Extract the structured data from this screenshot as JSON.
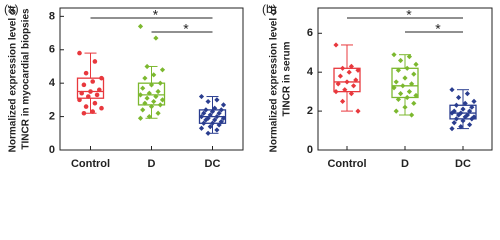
{
  "chart_data": [
    {
      "type": "box",
      "panel_label": "(a)",
      "ylabel": [
        "Normalized expression level of",
        "TINCR in myocardial biopsies"
      ],
      "categories": [
        "Control",
        "D",
        "DC"
      ],
      "ylim": [
        0,
        8.5
      ],
      "yticks": [
        0,
        2,
        4,
        6,
        8
      ],
      "significance": [
        "*",
        "*"
      ],
      "boxes": [
        {
          "color": "#e8383d",
          "marker": "circle",
          "whisker_low": 2.2,
          "q1": 3.1,
          "median": 3.5,
          "q3": 4.3,
          "whisker_high": 5.8,
          "points": [
            5.8,
            5.3,
            4.6,
            4.3,
            4.1,
            3.9,
            3.6,
            3.5,
            3.4,
            3.3,
            3.2,
            3.0,
            2.8,
            2.6,
            2.5,
            2.3,
            2.2
          ]
        },
        {
          "color": "#7cb82f",
          "marker": "diamond",
          "whisker_low": 1.9,
          "q1": 2.7,
          "median": 3.3,
          "q3": 4.0,
          "whisker_high": 5.0,
          "points": [
            7.4,
            6.7,
            5.0,
            4.8,
            4.5,
            4.3,
            4.0,
            3.9,
            3.7,
            3.5,
            3.4,
            3.3,
            3.2,
            3.1,
            3.0,
            2.9,
            2.8,
            2.7,
            2.6,
            2.4,
            2.2,
            2.0,
            1.9
          ]
        },
        {
          "color": "#2a3d8f",
          "marker": "diamond",
          "whisker_low": 1.0,
          "q1": 1.6,
          "median": 2.0,
          "q3": 2.4,
          "whisker_high": 3.2,
          "points": [
            3.2,
            3.0,
            2.9,
            2.7,
            2.5,
            2.4,
            2.4,
            2.3,
            2.2,
            2.2,
            2.1,
            2.0,
            2.0,
            1.9,
            1.9,
            1.8,
            1.8,
            1.7,
            1.6,
            1.6,
            1.5,
            1.4,
            1.3,
            1.2,
            1.0
          ]
        }
      ]
    },
    {
      "type": "box",
      "panel_label": "(b)",
      "ylabel": [
        "Normalized expression level of",
        "TINCR in serum"
      ],
      "categories": [
        "Control",
        "D",
        "DC"
      ],
      "ylim": [
        0,
        7.3
      ],
      "yticks": [
        0,
        2,
        4,
        6
      ],
      "significance": [
        "*",
        "*"
      ],
      "boxes": [
        {
          "color": "#e8383d",
          "marker": "diamond",
          "whisker_low": 2.0,
          "q1": 3.0,
          "median": 3.5,
          "q3": 4.2,
          "whisker_high": 5.4,
          "points": [
            5.4,
            4.3,
            4.2,
            4.1,
            4.0,
            3.8,
            3.6,
            3.5,
            3.4,
            3.3,
            3.1,
            3.0,
            2.9,
            2.5,
            2.0
          ]
        },
        {
          "color": "#7cb82f",
          "marker": "diamond",
          "whisker_low": 1.8,
          "q1": 2.7,
          "median": 3.3,
          "q3": 4.2,
          "whisker_high": 4.9,
          "points": [
            4.9,
            4.8,
            4.6,
            4.4,
            4.2,
            4.1,
            3.9,
            3.7,
            3.5,
            3.4,
            3.3,
            3.2,
            3.0,
            2.9,
            2.8,
            2.7,
            2.6,
            2.4,
            2.2,
            2.0,
            1.8
          ]
        },
        {
          "color": "#2a3d8f",
          "marker": "diamond",
          "whisker_low": 1.1,
          "q1": 1.6,
          "median": 1.9,
          "q3": 2.3,
          "whisker_high": 3.1,
          "points": [
            3.1,
            2.9,
            2.7,
            2.5,
            2.4,
            2.3,
            2.2,
            2.1,
            2.0,
            2.0,
            1.9,
            1.9,
            1.8,
            1.8,
            1.7,
            1.7,
            1.6,
            1.6,
            1.5,
            1.4,
            1.3,
            1.2,
            1.1
          ]
        }
      ]
    }
  ]
}
